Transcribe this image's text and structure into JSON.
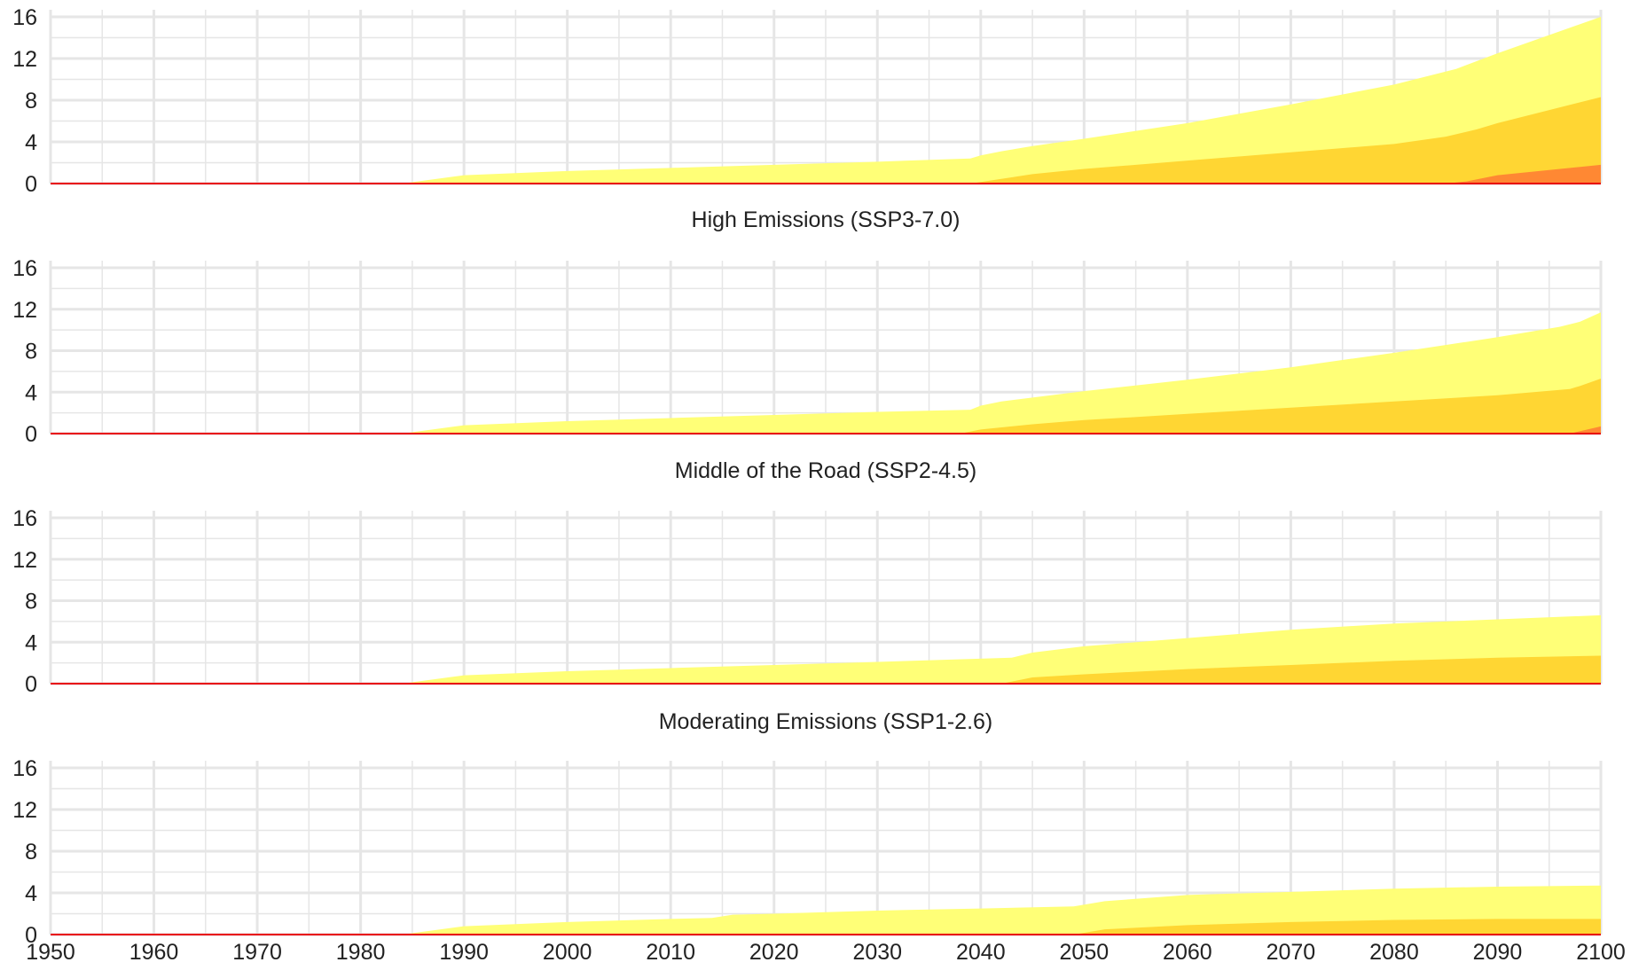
{
  "chart_data": [
    {
      "type": "area",
      "title": "",
      "xlabel": "",
      "ylabel": "",
      "xlim": [
        1950,
        2100
      ],
      "ylim": [
        0,
        16
      ],
      "yticks": [
        0,
        4,
        8,
        12,
        16
      ],
      "grid": true,
      "series": [
        {
          "color": "#FFFF77",
          "points": [
            [
              1950,
              0
            ],
            [
              1984,
              0
            ],
            [
              1990,
              0.8
            ],
            [
              2000,
              1.2
            ],
            [
              2010,
              1.5
            ],
            [
              2020,
              1.8
            ],
            [
              2030,
              2.1
            ],
            [
              2039,
              2.4
            ],
            [
              2040,
              2.7
            ],
            [
              2042,
              3.1
            ],
            [
              2045,
              3.6
            ],
            [
              2050,
              4.3
            ],
            [
              2060,
              5.8
            ],
            [
              2070,
              7.6
            ],
            [
              2080,
              9.5
            ],
            [
              2086,
              11.0
            ],
            [
              2090,
              12.5
            ],
            [
              2100,
              16.0
            ]
          ]
        },
        {
          "color": "#FFD633",
          "points": [
            [
              1950,
              0
            ],
            [
              2039,
              0
            ],
            [
              2041,
              0.3
            ],
            [
              2045,
              0.9
            ],
            [
              2050,
              1.4
            ],
            [
              2060,
              2.2
            ],
            [
              2070,
              3.0
            ],
            [
              2080,
              3.8
            ],
            [
              2085,
              4.5
            ],
            [
              2088,
              5.2
            ],
            [
              2090,
              5.8
            ],
            [
              2100,
              8.3
            ]
          ]
        },
        {
          "color": "#FF8833",
          "points": [
            [
              1950,
              0
            ],
            [
              2085,
              0
            ],
            [
              2087,
              0.2
            ],
            [
              2090,
              0.8
            ],
            [
              2095,
              1.3
            ],
            [
              2100,
              1.8
            ]
          ]
        }
      ]
    },
    {
      "type": "area",
      "title": "High Emissions (SSP3-7.0)",
      "xlabel": "",
      "ylabel": "",
      "xlim": [
        1950,
        2100
      ],
      "ylim": [
        0,
        16
      ],
      "yticks": [
        0,
        4,
        8,
        12,
        16
      ],
      "grid": true,
      "series": [
        {
          "color": "#FFFF77",
          "points": [
            [
              1950,
              0
            ],
            [
              1984,
              0
            ],
            [
              1990,
              0.8
            ],
            [
              2000,
              1.2
            ],
            [
              2010,
              1.5
            ],
            [
              2020,
              1.8
            ],
            [
              2030,
              2.1
            ],
            [
              2039,
              2.3
            ],
            [
              2040,
              2.7
            ],
            [
              2042,
              3.1
            ],
            [
              2050,
              4.1
            ],
            [
              2060,
              5.2
            ],
            [
              2070,
              6.4
            ],
            [
              2080,
              7.8
            ],
            [
              2090,
              9.3
            ],
            [
              2096,
              10.3
            ],
            [
              2098,
              10.8
            ],
            [
              2100,
              11.7
            ]
          ]
        },
        {
          "color": "#FFD633",
          "points": [
            [
              1950,
              0
            ],
            [
              2038,
              0
            ],
            [
              2040,
              0.4
            ],
            [
              2045,
              0.9
            ],
            [
              2050,
              1.3
            ],
            [
              2060,
              1.9
            ],
            [
              2070,
              2.5
            ],
            [
              2080,
              3.1
            ],
            [
              2090,
              3.7
            ],
            [
              2097,
              4.3
            ],
            [
              2098,
              4.6
            ],
            [
              2100,
              5.3
            ]
          ]
        },
        {
          "color": "#FF8833",
          "points": [
            [
              1950,
              0
            ],
            [
              2097,
              0
            ],
            [
              2100,
              0.7
            ]
          ]
        }
      ]
    },
    {
      "type": "area",
      "title": "Middle of the Road (SSP2-4.5)",
      "xlabel": "",
      "ylabel": "",
      "xlim": [
        1950,
        2100
      ],
      "ylim": [
        0,
        16
      ],
      "yticks": [
        0,
        4,
        8,
        12,
        16
      ],
      "grid": true,
      "series": [
        {
          "color": "#FFFF77",
          "points": [
            [
              1950,
              0
            ],
            [
              1984,
              0
            ],
            [
              1990,
              0.8
            ],
            [
              2000,
              1.2
            ],
            [
              2010,
              1.5
            ],
            [
              2020,
              1.8
            ],
            [
              2030,
              2.1
            ],
            [
              2043,
              2.5
            ],
            [
              2045,
              3.0
            ],
            [
              2050,
              3.6
            ],
            [
              2060,
              4.4
            ],
            [
              2070,
              5.2
            ],
            [
              2080,
              5.8
            ],
            [
              2090,
              6.2
            ],
            [
              2100,
              6.6
            ]
          ]
        },
        {
          "color": "#FFD633",
          "points": [
            [
              1950,
              0
            ],
            [
              2042,
              0
            ],
            [
              2045,
              0.6
            ],
            [
              2050,
              0.9
            ],
            [
              2060,
              1.4
            ],
            [
              2070,
              1.8
            ],
            [
              2080,
              2.2
            ],
            [
              2090,
              2.5
            ],
            [
              2100,
              2.7
            ]
          ]
        }
      ]
    },
    {
      "type": "area",
      "title": "Moderating Emissions (SSP1-2.6)",
      "xlabel": "",
      "ylabel": "",
      "xlim": [
        1950,
        2100
      ],
      "ylim": [
        0,
        16
      ],
      "yticks": [
        0,
        4,
        8,
        12,
        16
      ],
      "xticks": [
        1950,
        1960,
        1970,
        1980,
        1990,
        2000,
        2010,
        2020,
        2030,
        2040,
        2050,
        2060,
        2070,
        2080,
        2090,
        2100
      ],
      "grid": true,
      "series": [
        {
          "color": "#FFFF77",
          "points": [
            [
              1950,
              0
            ],
            [
              1984,
              0
            ],
            [
              1990,
              0.8
            ],
            [
              2000,
              1.2
            ],
            [
              2010,
              1.5
            ],
            [
              2014,
              1.6
            ],
            [
              2016,
              1.9
            ],
            [
              2020,
              2.0
            ],
            [
              2030,
              2.3
            ],
            [
              2040,
              2.5
            ],
            [
              2049,
              2.7
            ],
            [
              2052,
              3.2
            ],
            [
              2060,
              3.8
            ],
            [
              2070,
              4.1
            ],
            [
              2080,
              4.4
            ],
            [
              2090,
              4.6
            ],
            [
              2100,
              4.7
            ]
          ]
        },
        {
          "color": "#FFD633",
          "points": [
            [
              1950,
              0
            ],
            [
              2049,
              0
            ],
            [
              2052,
              0.5
            ],
            [
              2060,
              0.9
            ],
            [
              2070,
              1.2
            ],
            [
              2080,
              1.4
            ],
            [
              2090,
              1.5
            ],
            [
              2100,
              1.5
            ]
          ]
        }
      ]
    }
  ]
}
